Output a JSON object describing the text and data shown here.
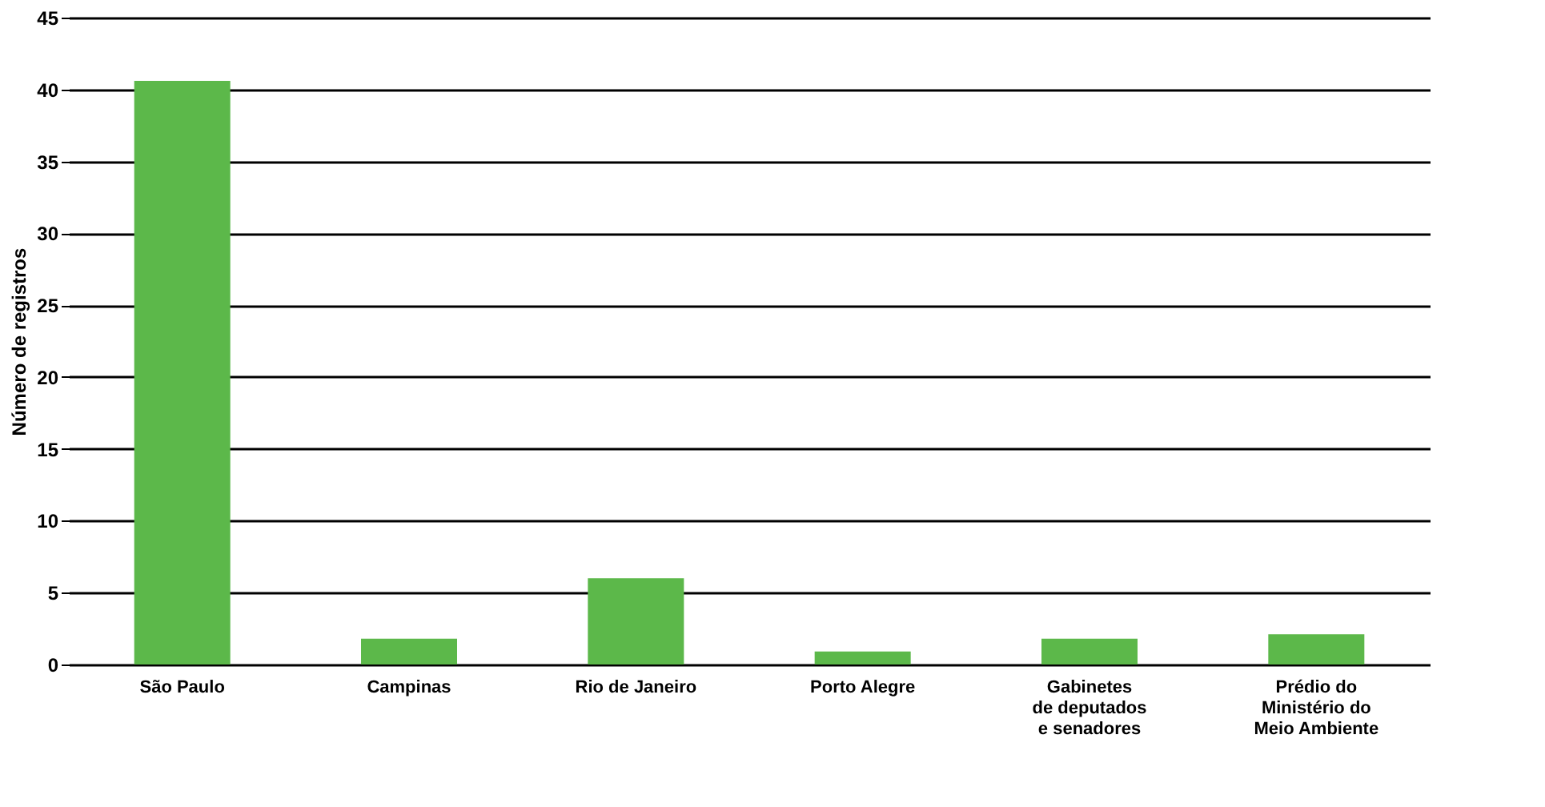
{
  "chart_data": {
    "type": "bar",
    "ylabel": "Número de registros",
    "categories": [
      "São Paulo",
      "Campinas",
      "Rio de Janeiro",
      "Porto Alegre",
      "Gabinetes\nde deputados\ne senadores",
      "Prédio do\nMinistério do\nMeio Ambiente"
    ],
    "values": [
      40.6,
      1.8,
      6.0,
      0.9,
      1.8,
      2.1
    ],
    "color": "#5cb84a",
    "ylim": [
      0,
      45
    ],
    "yticks": [
      0,
      5,
      10,
      15,
      20,
      25,
      30,
      35,
      40,
      45
    ],
    "grid": "y"
  }
}
